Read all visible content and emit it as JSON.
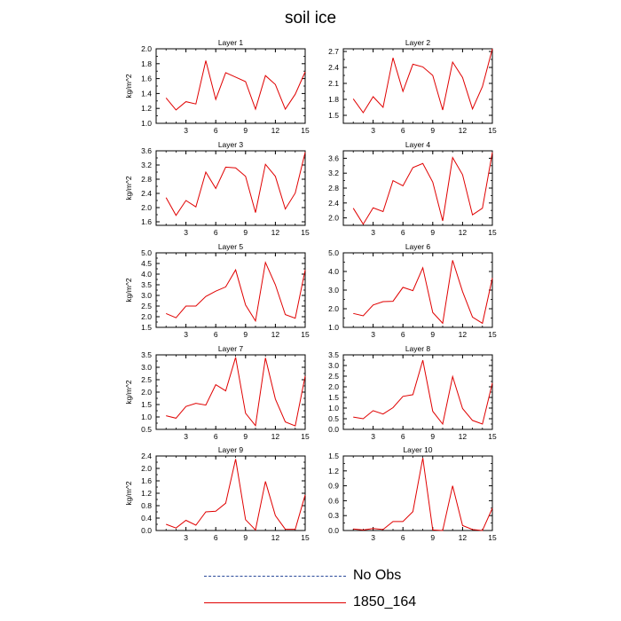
{
  "page": {
    "title": "soil ice"
  },
  "legend": {
    "items": [
      {
        "label": "No Obs",
        "style": "dashed",
        "color": "#2a4a9a"
      },
      {
        "label": "1850_164",
        "style": "solid",
        "color": "#e00000"
      }
    ]
  },
  "colors": {
    "series_line": "#e00000",
    "axis": "#000000"
  },
  "chart_data": [
    {
      "type": "line",
      "title": "Layer 1",
      "ylabel": "kg/m^2",
      "xlabel": "",
      "xlim": [
        0,
        15
      ],
      "ylim": [
        1.0,
        2.0
      ],
      "xticks": [
        "3",
        "6",
        "9",
        "12",
        "15"
      ],
      "yticks": [
        "1.0",
        "1.2",
        "1.4",
        "1.6",
        "1.8",
        "2.0"
      ],
      "x": [
        1,
        2,
        3,
        4,
        5,
        6,
        7,
        8,
        9,
        10,
        11,
        12,
        13,
        14,
        15
      ],
      "series": [
        {
          "name": "1850_164",
          "values": [
            1.34,
            1.18,
            1.29,
            1.26,
            1.84,
            1.32,
            1.68,
            1.62,
            1.56,
            1.19,
            1.64,
            1.52,
            1.19,
            1.39,
            1.69
          ]
        }
      ]
    },
    {
      "type": "line",
      "title": "Layer 2",
      "ylabel": "",
      "xlabel": "",
      "xlim": [
        0,
        15
      ],
      "ylim": [
        1.35,
        2.75
      ],
      "xticks": [
        "3",
        "6",
        "9",
        "12",
        "15"
      ],
      "yticks": [
        "1.5",
        "1.8",
        "2.1",
        "2.4",
        "2.7"
      ],
      "x": [
        1,
        2,
        3,
        4,
        5,
        6,
        7,
        8,
        9,
        10,
        11,
        12,
        13,
        14,
        15
      ],
      "series": [
        {
          "name": "1850_164",
          "values": [
            1.81,
            1.55,
            1.85,
            1.65,
            2.58,
            1.95,
            2.46,
            2.41,
            2.25,
            1.6,
            2.5,
            2.21,
            1.62,
            2.04,
            2.75
          ]
        }
      ]
    },
    {
      "type": "line",
      "title": "Layer 3",
      "ylabel": "kg/m^2",
      "xlabel": "",
      "xlim": [
        0,
        15
      ],
      "ylim": [
        1.5,
        3.6
      ],
      "xticks": [
        "3",
        "6",
        "9",
        "12",
        "15"
      ],
      "yticks": [
        "1.6",
        "2.0",
        "2.4",
        "2.8",
        "3.2",
        "3.6"
      ],
      "x": [
        1,
        2,
        3,
        4,
        5,
        6,
        7,
        8,
        9,
        10,
        11,
        12,
        13,
        14,
        15
      ],
      "series": [
        {
          "name": "1850_164",
          "values": [
            2.28,
            1.78,
            2.2,
            2.02,
            3.0,
            2.54,
            3.14,
            3.12,
            2.88,
            1.86,
            3.22,
            2.88,
            1.96,
            2.41,
            3.56
          ]
        }
      ]
    },
    {
      "type": "line",
      "title": "Layer 4",
      "ylabel": "",
      "xlabel": "",
      "xlim": [
        0,
        15
      ],
      "ylim": [
        1.8,
        3.8
      ],
      "xticks": [
        "3",
        "6",
        "9",
        "12",
        "15"
      ],
      "yticks": [
        "2.0",
        "2.4",
        "2.8",
        "3.2",
        "3.6"
      ],
      "x": [
        1,
        2,
        3,
        4,
        5,
        6,
        7,
        8,
        9,
        10,
        11,
        12,
        13,
        14,
        15
      ],
      "series": [
        {
          "name": "1850_164",
          "values": [
            2.26,
            1.83,
            2.27,
            2.17,
            3.0,
            2.86,
            3.35,
            3.46,
            2.96,
            1.92,
            3.62,
            3.16,
            2.08,
            2.26,
            3.76
          ]
        }
      ]
    },
    {
      "type": "line",
      "title": "Layer 5",
      "ylabel": "kg/m^2",
      "xlabel": "",
      "xlim": [
        0,
        15
      ],
      "ylim": [
        1.5,
        5.0
      ],
      "xticks": [
        "3",
        "6",
        "9",
        "12",
        "15"
      ],
      "yticks": [
        "1.5",
        "2.0",
        "2.5",
        "3.0",
        "3.5",
        "4.0",
        "4.5",
        "5.0"
      ],
      "x": [
        1,
        2,
        3,
        4,
        5,
        6,
        7,
        8,
        9,
        10,
        11,
        12,
        13,
        14,
        15
      ],
      "series": [
        {
          "name": "1850_164",
          "values": [
            2.15,
            1.95,
            2.5,
            2.5,
            2.95,
            3.2,
            3.4,
            4.2,
            2.55,
            1.8,
            4.55,
            3.5,
            2.1,
            1.93,
            4.2
          ]
        }
      ]
    },
    {
      "type": "line",
      "title": "Layer 6",
      "ylabel": "",
      "xlabel": "",
      "xlim": [
        0,
        15
      ],
      "ylim": [
        1.0,
        5.0
      ],
      "xticks": [
        "3",
        "6",
        "9",
        "12",
        "15"
      ],
      "yticks": [
        "1.0",
        "2.0",
        "3.0",
        "4.0",
        "5.0"
      ],
      "x": [
        1,
        2,
        3,
        4,
        5,
        6,
        7,
        8,
        9,
        10,
        11,
        12,
        13,
        14,
        15
      ],
      "series": [
        {
          "name": "1850_164",
          "values": [
            1.75,
            1.62,
            2.2,
            2.38,
            2.4,
            3.15,
            2.97,
            4.2,
            1.8,
            1.22,
            4.6,
            2.92,
            1.55,
            1.22,
            3.65
          ]
        }
      ]
    },
    {
      "type": "line",
      "title": "Layer 7",
      "ylabel": "kg/m^2",
      "xlabel": "",
      "xlim": [
        0,
        15
      ],
      "ylim": [
        0.5,
        3.5
      ],
      "xticks": [
        "3",
        "6",
        "9",
        "12",
        "15"
      ],
      "yticks": [
        "0.5",
        "1.0",
        "1.5",
        "2.0",
        "2.5",
        "3.0",
        "3.5"
      ],
      "x": [
        1,
        2,
        3,
        4,
        5,
        6,
        7,
        8,
        9,
        10,
        11,
        12,
        13,
        14,
        15
      ],
      "series": [
        {
          "name": "1850_164",
          "values": [
            1.05,
            0.95,
            1.42,
            1.55,
            1.48,
            2.3,
            2.05,
            3.4,
            1.15,
            0.65,
            3.38,
            1.72,
            0.8,
            0.64,
            2.65
          ]
        }
      ]
    },
    {
      "type": "line",
      "title": "Layer 8",
      "ylabel": "",
      "xlabel": "",
      "xlim": [
        0,
        15
      ],
      "ylim": [
        0.0,
        3.5
      ],
      "xticks": [
        "3",
        "6",
        "9",
        "12",
        "15"
      ],
      "yticks": [
        "0.0",
        "0.5",
        "1.0",
        "1.5",
        "2.0",
        "2.5",
        "3.0",
        "3.5"
      ],
      "x": [
        1,
        2,
        3,
        4,
        5,
        6,
        7,
        8,
        9,
        10,
        11,
        12,
        13,
        14,
        15
      ],
      "series": [
        {
          "name": "1850_164",
          "values": [
            0.58,
            0.5,
            0.88,
            0.72,
            1.02,
            1.55,
            1.63,
            3.25,
            0.85,
            0.25,
            2.48,
            0.98,
            0.42,
            0.25,
            2.18
          ]
        }
      ]
    },
    {
      "type": "line",
      "title": "Layer 9",
      "ylabel": "kg/m^2",
      "xlabel": "",
      "xlim": [
        0,
        15
      ],
      "ylim": [
        0.0,
        2.4
      ],
      "xticks": [
        "3",
        "6",
        "9",
        "12",
        "15"
      ],
      "yticks": [
        "0.0",
        "0.4",
        "0.8",
        "1.2",
        "1.6",
        "2.0",
        "2.4"
      ],
      "x": [
        1,
        2,
        3,
        4,
        5,
        6,
        7,
        8,
        9,
        10,
        11,
        12,
        13,
        14,
        15
      ],
      "series": [
        {
          "name": "1850_164",
          "values": [
            0.2,
            0.08,
            0.33,
            0.17,
            0.6,
            0.62,
            0.88,
            2.3,
            0.35,
            0.02,
            1.58,
            0.48,
            0.04,
            0.04,
            1.15
          ]
        }
      ]
    },
    {
      "type": "line",
      "title": "Layer 10",
      "ylabel": "",
      "xlabel": "",
      "xlim": [
        0,
        15
      ],
      "ylim": [
        0.0,
        1.5
      ],
      "xticks": [
        "3",
        "6",
        "9",
        "12",
        "15"
      ],
      "yticks": [
        "0.0",
        "0.3",
        "0.6",
        "0.9",
        "1.2",
        "1.5"
      ],
      "x": [
        1,
        2,
        3,
        4,
        5,
        6,
        7,
        8,
        9,
        10,
        11,
        12,
        13,
        14,
        15
      ],
      "series": [
        {
          "name": "1850_164",
          "values": [
            0.03,
            0.01,
            0.04,
            0.02,
            0.18,
            0.18,
            0.38,
            1.46,
            0.01,
            0.0,
            0.9,
            0.1,
            0.02,
            0.0,
            0.45
          ]
        }
      ]
    }
  ]
}
